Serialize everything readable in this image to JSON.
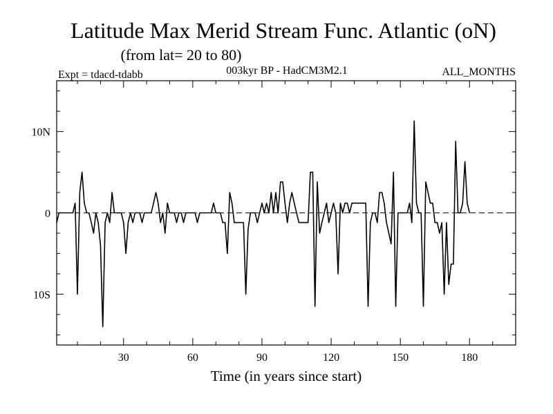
{
  "title": "Latitude Max Merid Stream Func. Atlantic (oN)",
  "subtitle": "(from lat= 20 to 80)",
  "left_label": "Expt = tdacd-tdabb",
  "center_label": "003kyr BP - HadCM3M2.1",
  "right_label": "ALL_MONTHS",
  "chart_data": {
    "type": "line",
    "title": "Latitude Max Merid Stream Func. Atlantic (oN)",
    "xlabel": "Time (in years since start)",
    "ylabel": "",
    "xlim": [
      1,
      200
    ],
    "ylim": [
      -16.25,
      16.25
    ],
    "reference_line": 0,
    "x_ticks": [
      {
        "value": 30,
        "label": "30"
      },
      {
        "value": 60,
        "label": "60"
      },
      {
        "value": 90,
        "label": "90"
      },
      {
        "value": 120,
        "label": "120"
      },
      {
        "value": 150,
        "label": "150"
      },
      {
        "value": 180,
        "label": "180"
      }
    ],
    "y_ticks": [
      {
        "value": 10,
        "label": "10N"
      },
      {
        "value": 0,
        "label": "0"
      },
      {
        "value": -10,
        "label": "10S"
      }
    ],
    "series": [
      {
        "name": "tdacd-tdabb",
        "values": [
          [
            1,
            -1.2
          ],
          [
            2,
            0
          ],
          [
            5,
            0
          ],
          [
            8,
            0
          ],
          [
            9,
            1.2
          ],
          [
            10,
            -10
          ],
          [
            11,
            2.5
          ],
          [
            12,
            5
          ],
          [
            13,
            1.2
          ],
          [
            14,
            0
          ],
          [
            15,
            0
          ],
          [
            16,
            -1.2
          ],
          [
            17,
            -2.5
          ],
          [
            18,
            0
          ],
          [
            19,
            -1.2
          ],
          [
            20,
            -4
          ],
          [
            21,
            -14
          ],
          [
            22,
            -1.2
          ],
          [
            23,
            0
          ],
          [
            24,
            -1.2
          ],
          [
            25,
            2.5
          ],
          [
            26,
            0
          ],
          [
            27,
            0
          ],
          [
            28,
            0
          ],
          [
            29,
            0
          ],
          [
            30,
            -1.2
          ],
          [
            31,
            -5
          ],
          [
            32,
            -1.2
          ],
          [
            33,
            0
          ],
          [
            34,
            -1.2
          ],
          [
            35,
            0
          ],
          [
            36,
            0
          ],
          [
            37,
            0
          ],
          [
            38,
            -1.2
          ],
          [
            39,
            0
          ],
          [
            40,
            0
          ],
          [
            41,
            0
          ],
          [
            42,
            0
          ],
          [
            43,
            1.2
          ],
          [
            44,
            2.5
          ],
          [
            45,
            1.2
          ],
          [
            46,
            -1.2
          ],
          [
            47,
            0
          ],
          [
            48,
            -2.5
          ],
          [
            49,
            1.2
          ],
          [
            50,
            0
          ],
          [
            51,
            0
          ],
          [
            52,
            0
          ],
          [
            53,
            -1.2
          ],
          [
            54,
            0
          ],
          [
            55,
            0
          ],
          [
            56,
            -1.2
          ],
          [
            57,
            0
          ],
          [
            58,
            0
          ],
          [
            59,
            0
          ],
          [
            60,
            0
          ],
          [
            61,
            0
          ],
          [
            62,
            -1.2
          ],
          [
            63,
            0
          ],
          [
            64,
            0
          ],
          [
            65,
            0
          ],
          [
            66,
            0
          ],
          [
            67,
            0
          ],
          [
            68,
            0
          ],
          [
            69,
            1.2
          ],
          [
            70,
            0
          ],
          [
            71,
            0
          ],
          [
            72,
            0
          ],
          [
            73,
            -1.2
          ],
          [
            74,
            -1.2
          ],
          [
            75,
            -5
          ],
          [
            76,
            2.5
          ],
          [
            77,
            1.2
          ],
          [
            78,
            -1.2
          ],
          [
            79,
            -1.2
          ],
          [
            80,
            -1.2
          ],
          [
            82,
            -1.2
          ],
          [
            83,
            -10
          ],
          [
            84,
            -2
          ],
          [
            85,
            0
          ],
          [
            86,
            0
          ],
          [
            87,
            0
          ],
          [
            88,
            -1.2
          ],
          [
            89,
            0
          ],
          [
            90,
            1.2
          ],
          [
            91,
            0
          ],
          [
            92,
            1.2
          ],
          [
            93,
            0
          ],
          [
            94,
            2.5
          ],
          [
            95,
            0
          ],
          [
            96,
            2.5
          ],
          [
            97,
            0
          ],
          [
            98,
            3.8
          ],
          [
            99,
            3.8
          ],
          [
            100,
            1.2
          ],
          [
            101,
            -1.2
          ],
          [
            102,
            1.2
          ],
          [
            103,
            2.5
          ],
          [
            104,
            1.2
          ],
          [
            105,
            0
          ],
          [
            106,
            -1.2
          ],
          [
            107,
            -1.2
          ],
          [
            108,
            -1.2
          ],
          [
            110,
            -1.2
          ],
          [
            111,
            5
          ],
          [
            112,
            5
          ],
          [
            113,
            -11.5
          ],
          [
            114,
            3.8
          ],
          [
            115,
            -2.5
          ],
          [
            116,
            -1.2
          ],
          [
            117,
            0
          ],
          [
            118,
            1.2
          ],
          [
            119,
            -1.2
          ],
          [
            120,
            0
          ],
          [
            121,
            1.2
          ],
          [
            122,
            0
          ],
          [
            123,
            -7.5
          ],
          [
            124,
            1.2
          ],
          [
            125,
            0
          ],
          [
            126,
            1.2
          ],
          [
            127,
            1.2
          ],
          [
            128,
            0
          ],
          [
            129,
            1.2
          ],
          [
            130,
            1.2
          ],
          [
            135,
            1.2
          ],
          [
            136,
            -11.5
          ],
          [
            137,
            -1.2
          ],
          [
            138,
            0
          ],
          [
            139,
            0
          ],
          [
            140,
            -1.2
          ],
          [
            141,
            2.5
          ],
          [
            142,
            2.5
          ],
          [
            143,
            1.2
          ],
          [
            144,
            -1.2
          ],
          [
            145,
            -2.5
          ],
          [
            146,
            -3.8
          ],
          [
            147,
            5
          ],
          [
            148,
            -11.5
          ],
          [
            149,
            0
          ],
          [
            150,
            0
          ],
          [
            151,
            0
          ],
          [
            152,
            0
          ],
          [
            153,
            0
          ],
          [
            154,
            1.2
          ],
          [
            155,
            -1.2
          ],
          [
            156,
            11.3
          ],
          [
            157,
            1.2
          ],
          [
            158,
            0
          ],
          [
            159,
            0
          ],
          [
            160,
            -11.5
          ],
          [
            161,
            3.8
          ],
          [
            162,
            2.5
          ],
          [
            163,
            1.2
          ],
          [
            164,
            1.2
          ],
          [
            165,
            -1.2
          ],
          [
            166,
            -1.2
          ],
          [
            167,
            -2.5
          ],
          [
            168,
            -1.2
          ],
          [
            169,
            -10
          ],
          [
            170,
            -1.2
          ],
          [
            171,
            -8.8
          ],
          [
            172,
            -6.3
          ],
          [
            173,
            -6.3
          ],
          [
            174,
            8.8
          ],
          [
            175,
            0
          ],
          [
            176,
            0
          ],
          [
            177,
            1.2
          ],
          [
            178,
            6.3
          ],
          [
            179,
            1.2
          ],
          [
            180,
            0
          ]
        ]
      }
    ]
  }
}
